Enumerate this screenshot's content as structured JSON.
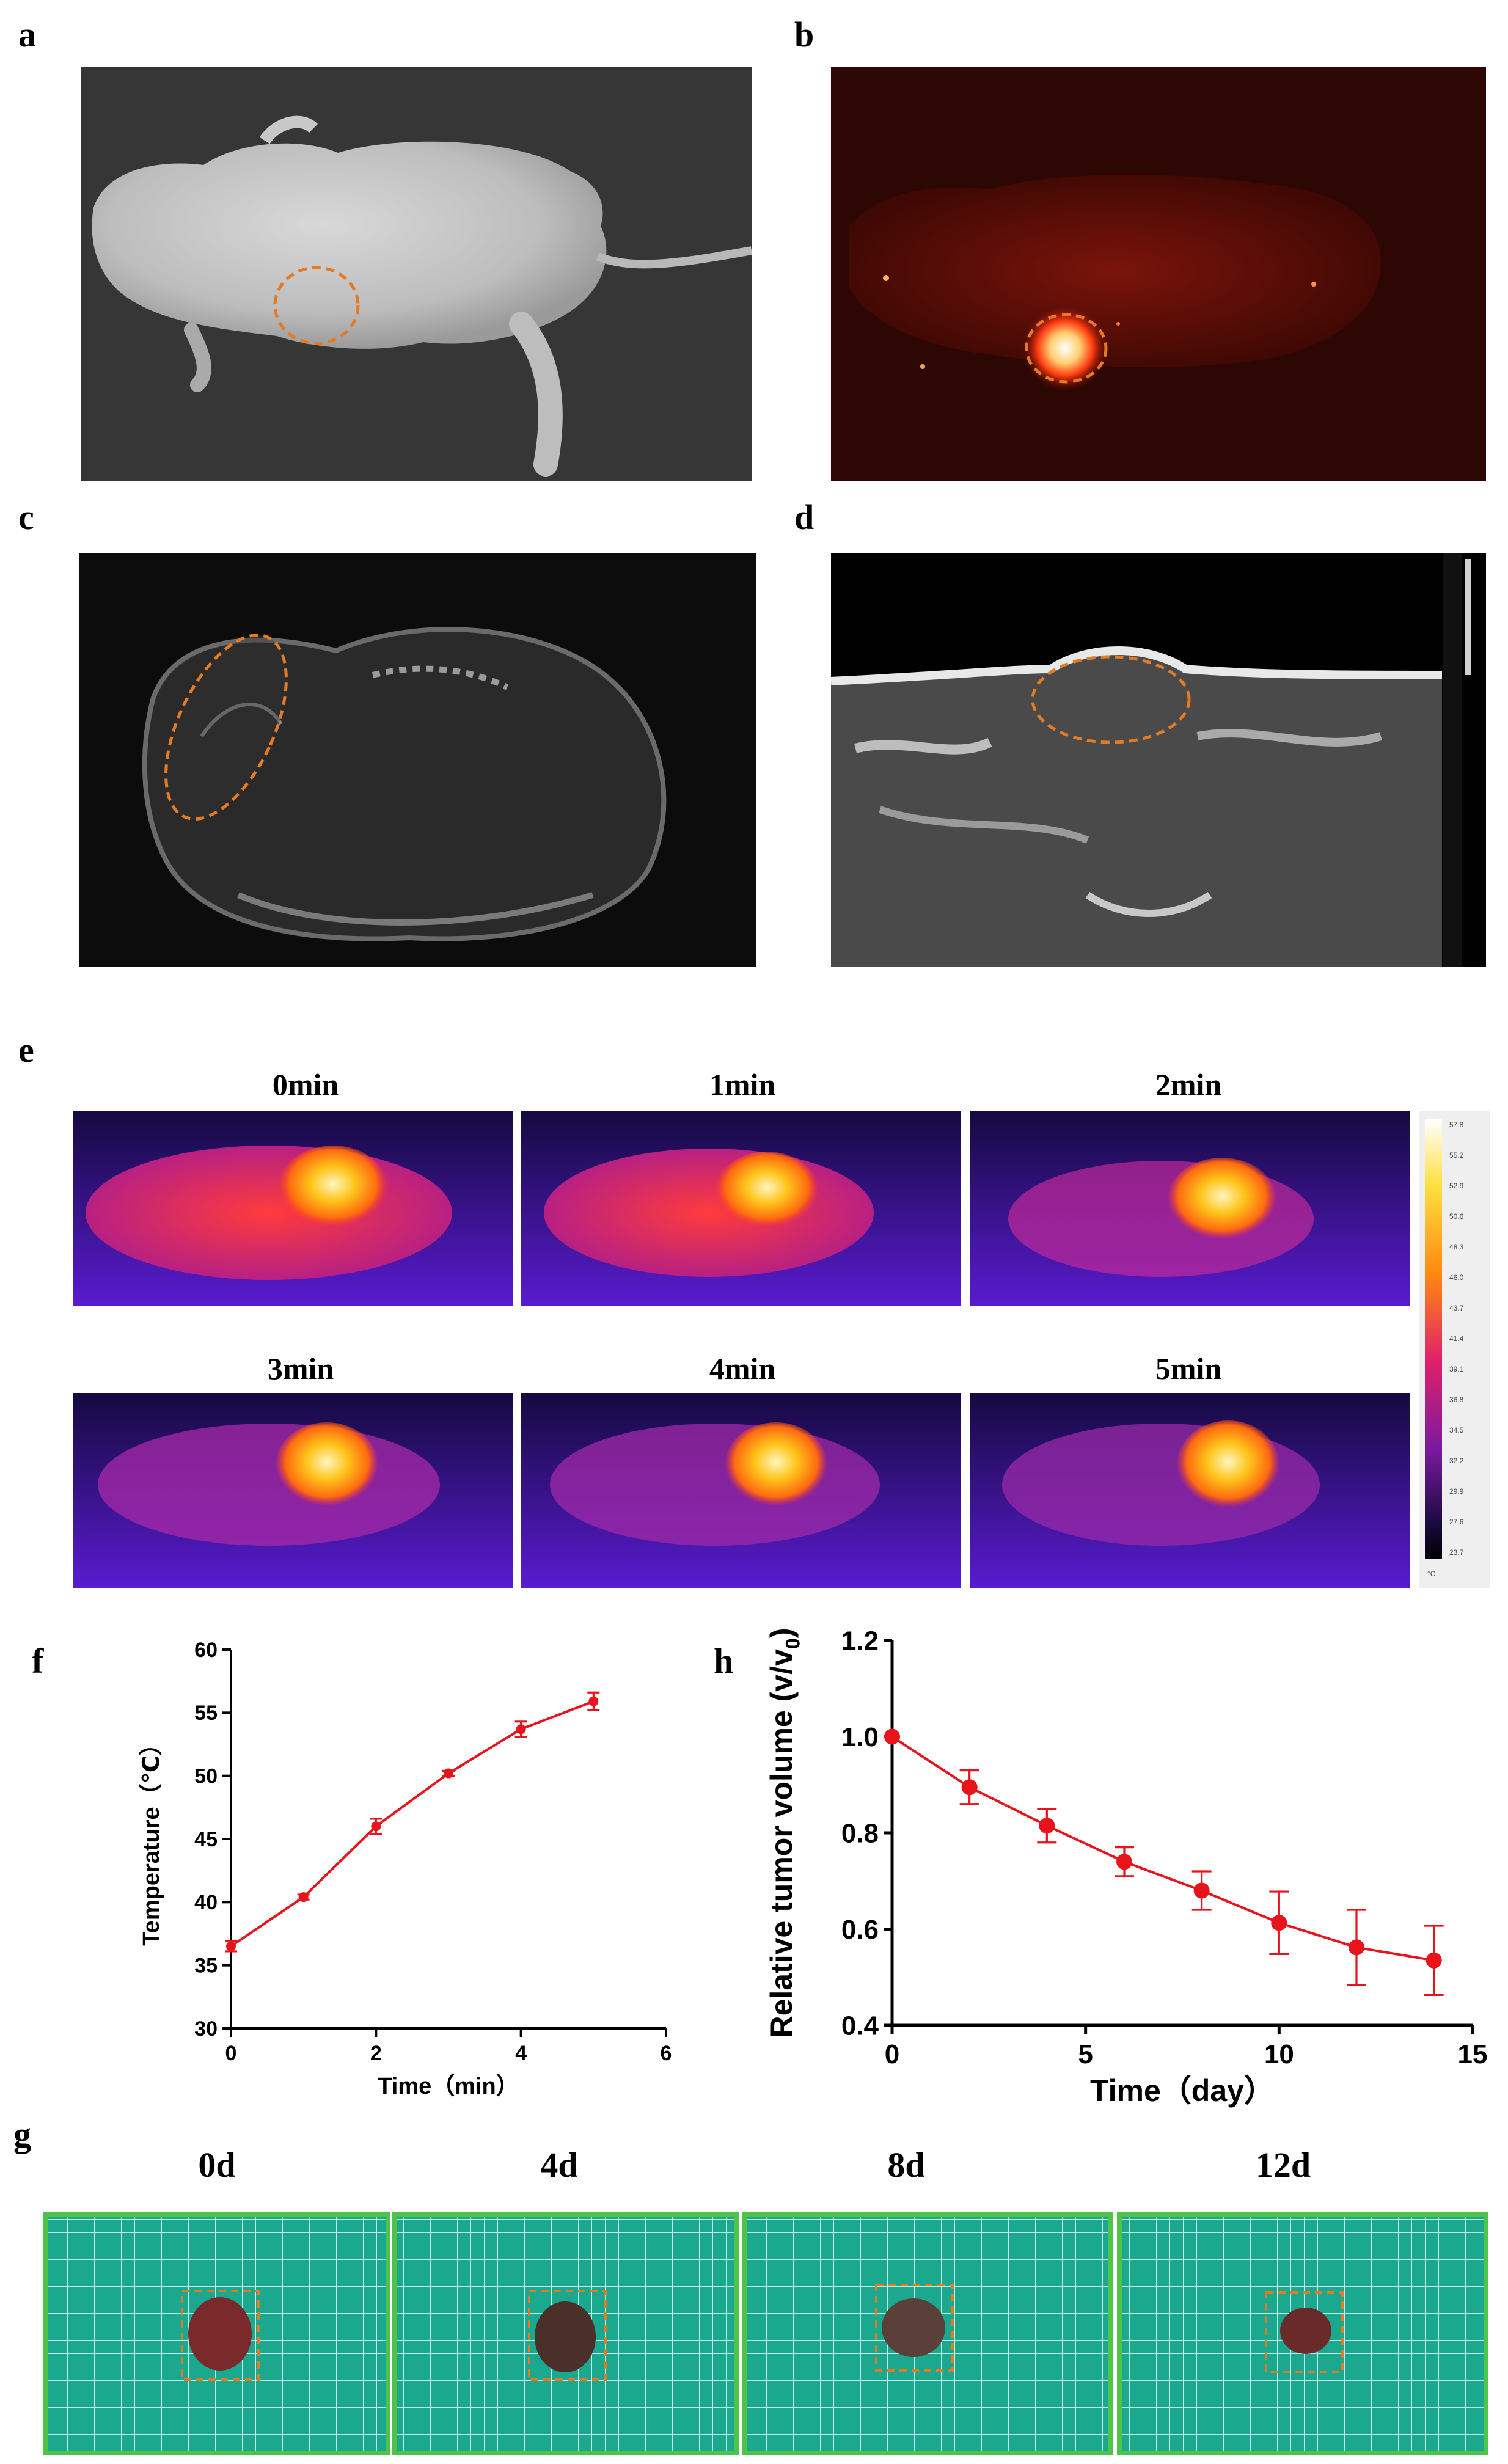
{
  "panels": {
    "a": "a",
    "b": "b",
    "c": "c",
    "d": "d",
    "e": "e",
    "f": "f",
    "g": "g",
    "h": "h"
  },
  "thermal": {
    "frames": [
      "0min",
      "1min",
      "2min",
      "3min",
      "4min",
      "5min"
    ],
    "scale_values": [
      "57.8",
      "55.2",
      "52.9",
      "50.6",
      "48.3",
      "46.0",
      "43.7",
      "41.4",
      "39.1",
      "36.8",
      "34.5",
      "32.2",
      "29.9",
      "27.6",
      "23.7"
    ],
    "scale_unit": "°C"
  },
  "tumor_days": [
    "0d",
    "4d",
    "8d",
    "12d"
  ],
  "colors": {
    "accent": "#e8131b",
    "ellipse": "#e37b24",
    "grid_bg": "#18b89a"
  },
  "chart_data": [
    {
      "id": "f",
      "type": "line",
      "x": [
        0,
        1,
        2,
        3,
        4,
        5
      ],
      "y": [
        36.5,
        40.4,
        46.0,
        50.2,
        53.7,
        55.9
      ],
      "err": [
        0.4,
        0.2,
        0.6,
        0.2,
        0.6,
        0.7
      ],
      "xlabel": "Time（min）",
      "ylabel": "Temperature（℃）",
      "xlim": [
        0,
        6
      ],
      "ylim": [
        30,
        60
      ],
      "xticks": [
        "0",
        "2",
        "4",
        "6"
      ],
      "yticks": [
        "30",
        "35",
        "40",
        "45",
        "50",
        "55",
        "60"
      ],
      "color": "#e8131b"
    },
    {
      "id": "h",
      "type": "line",
      "x": [
        0,
        2,
        4,
        6,
        8,
        10,
        12,
        14
      ],
      "y": [
        1.0,
        0.895,
        0.815,
        0.74,
        0.68,
        0.613,
        0.562,
        0.535
      ],
      "err": [
        0.0,
        0.035,
        0.035,
        0.03,
        0.04,
        0.065,
        0.078,
        0.072
      ],
      "xlabel": "Time（day）",
      "ylabel": "Relative tumor volume",
      "ylabel_sup": "(v/v",
      "ylabel_sub": "0",
      "ylabel_end": ")",
      "xlim": [
        0,
        15
      ],
      "ylim": [
        0.4,
        1.2
      ],
      "xticks": [
        "0",
        "5",
        "10",
        "15"
      ],
      "yticks": [
        "0.4",
        "0.6",
        "0.8",
        "1.0",
        "1.2"
      ],
      "color": "#e8131b"
    }
  ]
}
